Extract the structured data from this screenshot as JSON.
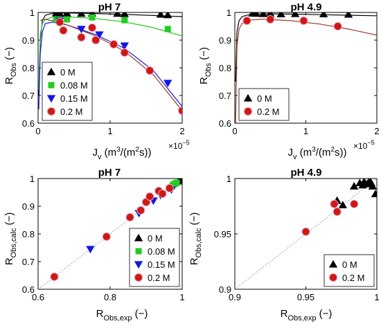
{
  "colors": {
    "0 M": "#000000",
    "0.08 M": "#22cc22",
    "0.15 M": "#1515e6",
    "0.2 M": "#cc1a12",
    "fit_0 M": "#000000",
    "fit_0.08 M": "#22cc22",
    "fit_0.15 M": "#1515e6",
    "fit_0.2 M": "#9a3a2a",
    "parity": "#6a8fb5",
    "marker_halo": "#f0a0c8"
  },
  "chart_data": [
    {
      "type": "scatter",
      "title": "pH 7",
      "xlabel_main": "J",
      "xlabel_sub": "v",
      "xlabel_rest": " (m",
      "xlabel_sup1": "3",
      "xlabel_mid": "/(m",
      "xlabel_sup2": "2",
      "xlabel_end": "s))",
      "ylabel_main": "R",
      "ylabel_sub": "Obs",
      "ylabel_rest": " (−)",
      "x_exponent_base": "×10",
      "x_exponent_power": "−5",
      "xlim": [
        0,
        2e-05
      ],
      "ylim": [
        0.6,
        1.0
      ],
      "xtick_labels": [
        "0",
        "1",
        "2"
      ],
      "ytick_labels": [
        "0.6",
        "0.7",
        "0.8",
        "0.9",
        "1"
      ],
      "legend_position": "bottom-left",
      "series": [
        {
          "name": "0 M",
          "marker": "triangle",
          "x": [
            2.5e-06,
            3e-06,
            4e-06,
            6e-06,
            7.5e-06,
            1.1e-05,
            1.2e-05,
            1.7e-05,
            1.8e-05
          ],
          "y": [
            0.998,
            0.997,
            0.997,
            0.996,
            0.997,
            0.996,
            0.995,
            0.993,
            0.991
          ],
          "fit_x": [
            1e-07,
            3e-07,
            6e-07,
            1e-06,
            2e-06,
            4e-06,
            8e-06,
            1.2e-05,
            1.6e-05,
            2e-05
          ],
          "fit_y": [
            0.7,
            0.9,
            0.97,
            0.99,
            0.997,
            0.998,
            0.996,
            0.993,
            0.989,
            0.985
          ]
        },
        {
          "name": "0.08 M",
          "marker": "square",
          "x": [
            2.5e-06,
            4e-06,
            7.5e-06,
            1.2e-05,
            1.8e-05
          ],
          "y": [
            0.975,
            0.975,
            0.982,
            0.972,
            0.94
          ],
          "fit_x": [
            1e-07,
            3e-07,
            6e-07,
            1e-06,
            2e-06,
            4e-06,
            8e-06,
            1.2e-05,
            1.6e-05,
            2e-05
          ],
          "fit_y": [
            0.72,
            0.92,
            0.96,
            0.975,
            0.983,
            0.984,
            0.978,
            0.966,
            0.945,
            0.915
          ]
        },
        {
          "name": "0.15 M",
          "marker": "triangle-down",
          "x": [
            3e-06,
            6e-06,
            8.5e-06,
            1.2e-05,
            1.8e-05
          ],
          "y": [
            0.97,
            0.94,
            0.92,
            0.88,
            0.745
          ],
          "fit_x": [
            1e-07,
            3e-07,
            6e-07,
            1e-06,
            2e-06,
            4e-06,
            8e-06,
            1.2e-05,
            1.6e-05,
            2e-05
          ],
          "fit_y": [
            0.65,
            0.85,
            0.93,
            0.96,
            0.965,
            0.955,
            0.92,
            0.87,
            0.79,
            0.66
          ]
        },
        {
          "name": "0.2 M",
          "marker": "circle",
          "x": [
            3e-06,
            3.5e-06,
            6e-06,
            7.5e-06,
            8e-06,
            1.05e-05,
            1.2e-05,
            1.55e-05,
            2e-05
          ],
          "y": [
            0.965,
            0.935,
            0.91,
            0.945,
            0.9,
            0.885,
            0.855,
            0.79,
            0.645
          ],
          "fit_x": [
            3e-07,
            6e-07,
            1e-06,
            2e-06,
            4e-06,
            8e-06,
            1.2e-05,
            1.6e-05,
            2e-05
          ],
          "fit_y": [
            0.97,
            0.975,
            0.975,
            0.97,
            0.955,
            0.915,
            0.86,
            0.775,
            0.645
          ]
        }
      ],
      "legend": [
        "0 M",
        "0.08 M",
        "0.15 M",
        "0.2 M"
      ]
    },
    {
      "type": "scatter",
      "title": "pH 4.9",
      "xlabel_main": "J",
      "xlabel_sub": "v",
      "xlabel_rest": " (m",
      "xlabel_sup1": "3",
      "xlabel_mid": "/(m",
      "xlabel_sup2": "2",
      "xlabel_end": "s))",
      "ylabel_main": "R",
      "ylabel_sub": "Obs",
      "ylabel_rest": " (−)",
      "x_exponent_base": "×10",
      "x_exponent_power": "−5",
      "xlim": [
        0,
        2e-05
      ],
      "ylim": [
        0.6,
        1.0
      ],
      "xtick_labels": [
        "0",
        "1",
        "2"
      ],
      "ytick_labels": [
        "0.6",
        "0.7",
        "0.8",
        "0.9",
        "1"
      ],
      "legend_position": "bottom-left",
      "series": [
        {
          "name": "0 M",
          "marker": "triangle",
          "x": [
            2.5e-06,
            3e-06,
            4e-06,
            5e-06,
            6.5e-06,
            8.5e-06,
            1.25e-05,
            1.6e-05
          ],
          "y": [
            0.997,
            0.996,
            0.995,
            0.996,
            0.994,
            0.995,
            0.994,
            0.993
          ],
          "fit_x": [
            1e-07,
            3e-07,
            6e-07,
            1e-06,
            2e-06,
            4e-06,
            8e-06,
            1.2e-05,
            1.6e-05,
            2e-05
          ],
          "fit_y": [
            0.75,
            0.93,
            0.97,
            0.985,
            0.992,
            0.995,
            0.994,
            0.992,
            0.99,
            0.988
          ]
        },
        {
          "name": "0.2 M",
          "marker": "circle",
          "x": [
            1.7e-06,
            5e-06,
            9.7e-06,
            1.45e-05
          ],
          "y": [
            0.97,
            0.975,
            0.97,
            0.95
          ],
          "fit_x": [
            1e-07,
            3e-07,
            6e-07,
            1e-06,
            2e-06,
            4e-06,
            8e-06,
            1.2e-05,
            1.6e-05,
            2e-05
          ],
          "fit_y": [
            0.6,
            0.88,
            0.94,
            0.96,
            0.972,
            0.976,
            0.97,
            0.958,
            0.94,
            0.918
          ]
        }
      ],
      "legend": [
        "0 M",
        "0.2 M"
      ]
    },
    {
      "type": "scatter",
      "title": "pH 7",
      "xlabel_main": "R",
      "xlabel_sub": "Obs,exp",
      "xlabel_rest": " (−)",
      "ylabel_main": "R",
      "ylabel_sub": "Obs,calc",
      "ylabel_rest": " (−)",
      "xlim": [
        0.6,
        1.0
      ],
      "ylim": [
        0.6,
        1.0
      ],
      "xtick_labels": [
        "0.6",
        "0.8",
        "1"
      ],
      "xtick_values": [
        0.6,
        0.8,
        1.0
      ],
      "ytick_labels": [
        "0.6",
        "0.7",
        "0.8",
        "0.9",
        "1"
      ],
      "ytick_values": [
        0.6,
        0.7,
        0.8,
        0.9,
        1.0
      ],
      "legend_position": "bottom-right",
      "parity_line": true,
      "series": [
        {
          "name": "0 M",
          "marker": "triangle",
          "x": [
            0.991,
            0.993,
            0.995,
            0.996,
            0.997,
            0.998,
            0.997,
            0.999
          ],
          "y": [
            0.99,
            0.995,
            0.998,
            0.999,
            0.999,
            0.999,
            0.996,
            0.998
          ]
        },
        {
          "name": "0.08 M",
          "marker": "square",
          "x": [
            0.972,
            0.975,
            0.978,
            0.982,
            0.985
          ],
          "y": [
            0.972,
            0.978,
            0.98,
            0.983,
            0.985
          ]
        },
        {
          "name": "0.15 M",
          "marker": "triangle-down",
          "x": [
            0.745,
            0.88,
            0.92,
            0.94,
            0.97
          ],
          "y": [
            0.745,
            0.875,
            0.92,
            0.94,
            0.96
          ]
        },
        {
          "name": "0.2 M",
          "marker": "circle",
          "x": [
            0.645,
            0.79,
            0.855,
            0.885,
            0.9,
            0.91,
            0.935,
            0.945,
            0.965
          ],
          "y": [
            0.645,
            0.79,
            0.86,
            0.885,
            0.915,
            0.935,
            0.955,
            0.945,
            0.965
          ]
        }
      ],
      "legend": [
        "0 M",
        "0.08 M",
        "0.15 M",
        "0.2 M"
      ]
    },
    {
      "type": "scatter",
      "title": "pH 4.9",
      "xlabel_main": "R",
      "xlabel_sub": "Obs,exp",
      "xlabel_rest": " (−)",
      "ylabel_main": "R",
      "ylabel_sub": "Obs,calc",
      "ylabel_rest": " (−)",
      "xlim": [
        0.9,
        1.0
      ],
      "ylim": [
        0.9,
        1.0
      ],
      "xtick_labels": [
        "0.9",
        "0.95",
        "1"
      ],
      "xtick_values": [
        0.9,
        0.95,
        1.0
      ],
      "ytick_labels": [
        "0.9",
        "0.95",
        "1"
      ],
      "ytick_values": [
        0.9,
        0.95,
        1.0
      ],
      "legend_position": "bottom-right",
      "parity_line": true,
      "series": [
        {
          "name": "0 M",
          "marker": "triangle",
          "x": [
            0.972,
            0.976,
            0.984,
            0.988,
            0.99,
            0.991,
            0.993,
            0.994,
            0.995,
            0.996,
            0.997,
            0.999
          ],
          "y": [
            0.98,
            0.976,
            0.993,
            0.996,
            0.994,
            0.997,
            0.995,
            0.996,
            0.997,
            0.996,
            0.993,
            0.986
          ]
        },
        {
          "name": "0.2 M",
          "marker": "circle",
          "x": [
            0.95,
            0.97,
            0.972,
            0.984
          ],
          "y": [
            0.952,
            0.977,
            0.97,
            0.977
          ]
        }
      ],
      "legend": [
        "0 M",
        "0.2 M"
      ]
    }
  ]
}
